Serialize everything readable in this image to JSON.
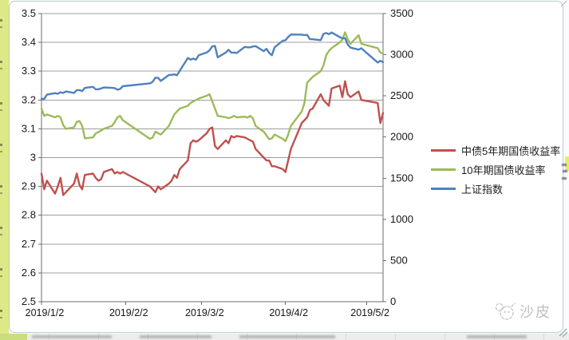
{
  "watermark": {
    "text": "沙皮",
    "icon": "doodle-dog-face-icon"
  },
  "chart_data": {
    "type": "line",
    "title": "",
    "xlabel": "",
    "ylabel_left": "",
    "ylabel_right": "",
    "grid": "horizontal-only",
    "legend_position": "right",
    "left_axis": {
      "min": 2.5,
      "max": 3.5,
      "step": 0.1,
      "tick_labels": [
        "3.5",
        "3.4",
        "3.3",
        "3.2",
        "3.1",
        "3",
        "2.9",
        "2.8",
        "2.7",
        "2.6",
        "2.5"
      ]
    },
    "right_axis": {
      "min": 0,
      "max": 3500,
      "step": 500,
      "tick_labels": [
        "3500",
        "3000",
        "2500",
        "2000",
        "1500",
        "1000",
        "500",
        "0"
      ]
    },
    "x_axis": {
      "tick_labels": [
        "2019/1/2",
        "2019/2/2",
        "2019/3/2",
        "2019/4/2",
        "2019/5/2"
      ],
      "tick_days": [
        0,
        31,
        59,
        90,
        120
      ],
      "start_date": "2019/1/2",
      "end_date": "2019/5/8"
    },
    "dates": [
      "1/2",
      "1/3",
      "1/4",
      "1/7",
      "1/8",
      "1/9",
      "1/10",
      "1/11",
      "1/14",
      "1/15",
      "1/16",
      "1/17",
      "1/18",
      "1/21",
      "1/22",
      "1/23",
      "1/24",
      "1/25",
      "1/28",
      "1/29",
      "1/30",
      "1/31",
      "2/1",
      "2/11",
      "2/12",
      "2/13",
      "2/14",
      "2/15",
      "2/18",
      "2/19",
      "2/20",
      "2/21",
      "2/22",
      "2/25",
      "2/26",
      "2/27",
      "2/28",
      "3/1",
      "3/4",
      "3/5",
      "3/6",
      "3/7",
      "3/8",
      "3/11",
      "3/12",
      "3/13",
      "3/14",
      "3/15",
      "3/18",
      "3/19",
      "3/20",
      "3/21",
      "3/22",
      "3/25",
      "3/26",
      "3/27",
      "3/28",
      "3/29",
      "4/1",
      "4/2",
      "4/3",
      "4/4",
      "4/8",
      "4/9",
      "4/10",
      "4/11",
      "4/12",
      "4/15",
      "4/16",
      "4/17",
      "4/18",
      "4/19",
      "4/22",
      "4/23",
      "4/24",
      "4/25",
      "4/26",
      "4/29",
      "4/30",
      "5/6",
      "5/7",
      "5/8"
    ],
    "series": [
      {
        "name": "中债5年期国债收益率",
        "color": "#C0504D",
        "axis": "left",
        "values": [
          2.945,
          2.89,
          2.92,
          2.875,
          2.9,
          2.93,
          2.87,
          2.88,
          2.91,
          2.945,
          2.905,
          2.89,
          2.94,
          2.945,
          2.93,
          2.92,
          2.925,
          2.95,
          2.96,
          2.945,
          2.95,
          2.945,
          2.95,
          2.9,
          2.89,
          2.88,
          2.9,
          2.89,
          2.91,
          2.92,
          2.94,
          2.93,
          2.96,
          2.99,
          3.05,
          3.06,
          3.055,
          3.06,
          3.085,
          3.1,
          3.105,
          3.04,
          3.03,
          3.06,
          3.05,
          3.075,
          3.07,
          3.075,
          3.07,
          3.065,
          3.06,
          3.055,
          3.03,
          3.0,
          2.99,
          2.99,
          2.97,
          2.97,
          2.96,
          2.95,
          2.99,
          3.03,
          3.12,
          3.13,
          3.14,
          3.165,
          3.17,
          3.22,
          3.2,
          3.19,
          3.18,
          3.24,
          3.25,
          3.21,
          3.265,
          3.22,
          3.21,
          3.23,
          3.2,
          3.19,
          3.12,
          3.155
        ]
      },
      {
        "name": "10年期国债收益率",
        "color": "#9BBB59",
        "axis": "left",
        "values": [
          3.17,
          3.145,
          3.15,
          3.14,
          3.145,
          3.14,
          3.113,
          3.1,
          3.105,
          3.124,
          3.127,
          3.11,
          3.067,
          3.07,
          3.084,
          3.089,
          3.094,
          3.1,
          3.11,
          3.123,
          3.14,
          3.145,
          3.13,
          3.065,
          3.07,
          3.09,
          3.085,
          3.08,
          3.11,
          3.13,
          3.15,
          3.16,
          3.17,
          3.18,
          3.19,
          3.195,
          3.2,
          3.205,
          3.215,
          3.22,
          3.195,
          3.17,
          3.145,
          3.14,
          3.137,
          3.14,
          3.145,
          3.14,
          3.142,
          3.139,
          3.145,
          3.136,
          3.11,
          3.09,
          3.077,
          3.064,
          3.067,
          3.08,
          3.065,
          3.057,
          3.08,
          3.11,
          3.16,
          3.19,
          3.26,
          3.27,
          3.28,
          3.3,
          3.32,
          3.355,
          3.37,
          3.38,
          3.4,
          3.41,
          3.435,
          3.41,
          3.395,
          3.425,
          3.395,
          3.38,
          3.365,
          3.36
        ]
      },
      {
        "name": "上证指数",
        "color": "#4F81BD",
        "axis": "right",
        "values": [
          2465,
          2464,
          2515,
          2533,
          2526,
          2544,
          2535,
          2554,
          2536,
          2570,
          2570,
          2559,
          2596,
          2610,
          2580,
          2581,
          2591,
          2602,
          2597,
          2594,
          2575,
          2584,
          2618,
          2653,
          2671,
          2721,
          2719,
          2682,
          2754,
          2756,
          2761,
          2751,
          2804,
          2961,
          2941,
          2953,
          2941,
          2994,
          3028,
          3054,
          3102,
          3106,
          2969,
          3027,
          3060,
          3026,
          3026,
          3021,
          3096,
          3090,
          3090,
          3101,
          3104,
          3043,
          3071,
          3022,
          2994,
          3090,
          3170,
          3176,
          3216,
          3246,
          3244,
          3239,
          3241,
          3189,
          3188,
          3177,
          3253,
          3263,
          3250,
          3270,
          3215,
          3198,
          3201,
          3123,
          3086,
          3062,
          3078,
          2906,
          2926,
          2910
        ]
      }
    ]
  }
}
